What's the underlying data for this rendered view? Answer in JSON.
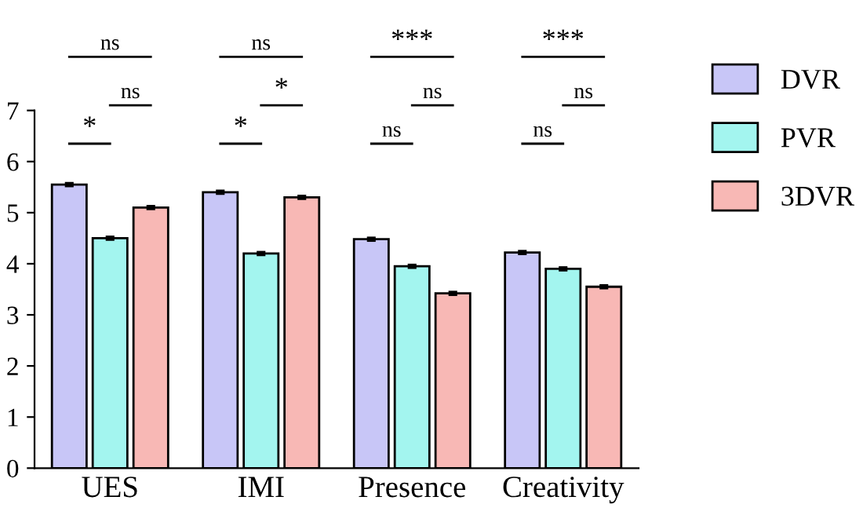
{
  "chart_data": {
    "type": "bar",
    "categories": [
      "UES",
      "IMI",
      "Presence",
      "Creativity"
    ],
    "series": [
      {
        "name": "DVR",
        "color": "#c8c6f7",
        "values": [
          5.55,
          5.4,
          4.48,
          4.22
        ],
        "errors": [
          0.03,
          0.03,
          0.03,
          0.03
        ]
      },
      {
        "name": "PVR",
        "color": "#a3f5ef",
        "values": [
          4.5,
          4.2,
          3.95,
          3.9
        ],
        "errors": [
          0.03,
          0.03,
          0.03,
          0.03
        ]
      },
      {
        "name": "3DVR",
        "color": "#f8b8b5",
        "values": [
          5.1,
          5.3,
          3.42,
          3.55
        ],
        "errors": [
          0.03,
          0.03,
          0.03,
          0.03
        ]
      }
    ],
    "ylim": [
      0,
      7
    ],
    "yticks": [
      0,
      1,
      2,
      3,
      4,
      5,
      6,
      7
    ],
    "grid": false,
    "legend": "top right",
    "annotations": [
      "ns",
      "ns",
      "*",
      "ns",
      "*",
      "*",
      "***",
      "ns",
      "ns",
      "***",
      "ns",
      "ns"
    ]
  }
}
